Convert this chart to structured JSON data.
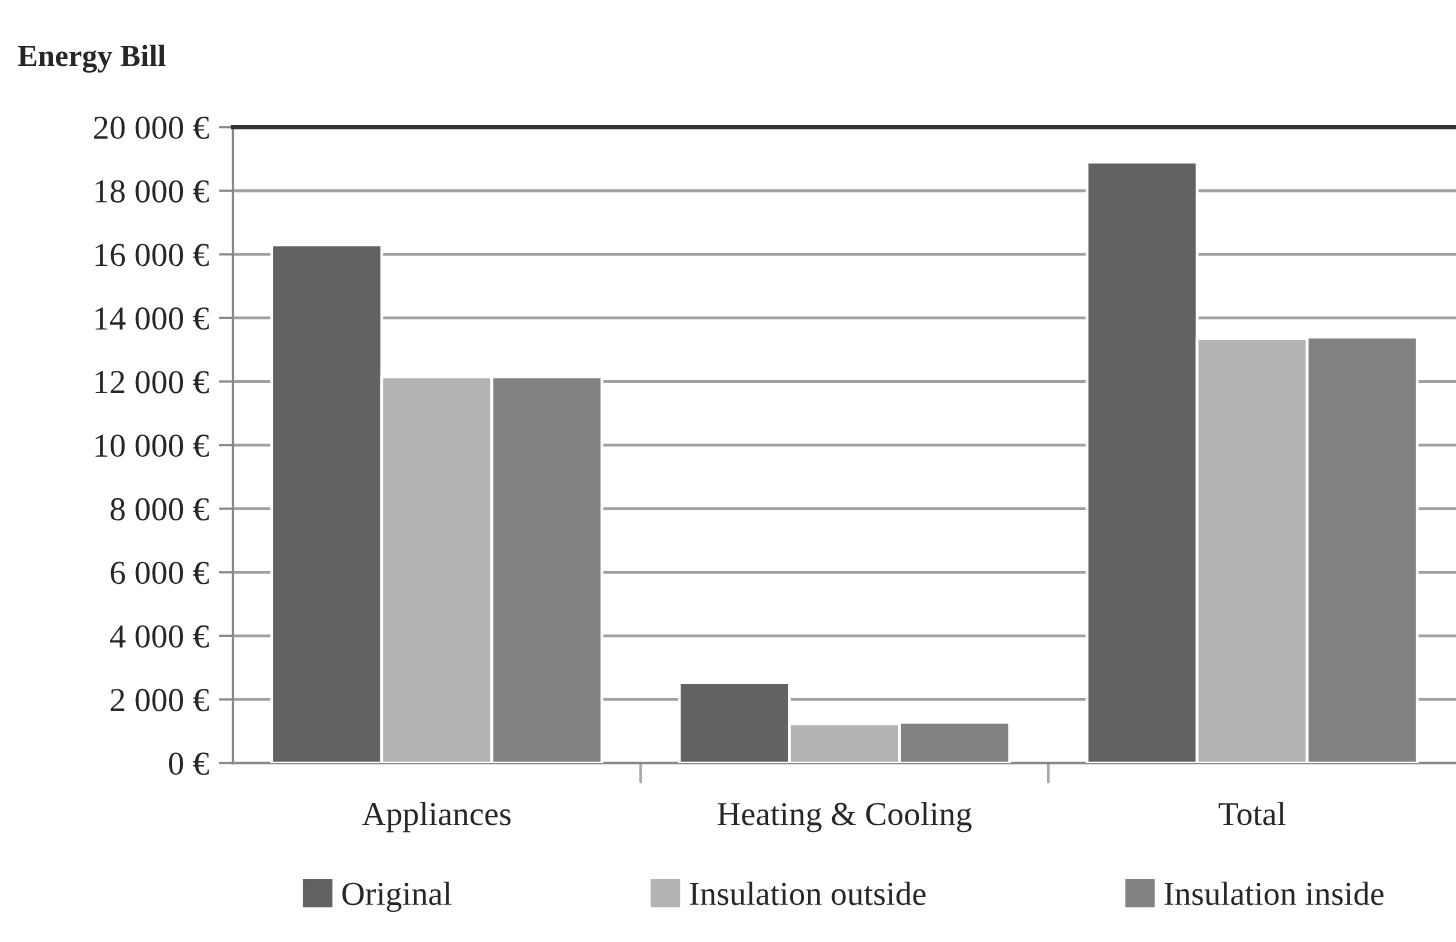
{
  "chart_data": {
    "type": "bar",
    "title": "Energy Bill",
    "categories": [
      "Appliances",
      "Heating & Cooling",
      "Total"
    ],
    "series": [
      {
        "name": "Original",
        "color": "#626262",
        "values": [
          16300,
          2530,
          18900
        ]
      },
      {
        "name": "Insulation outside",
        "color": "#b3b3b3",
        "values": [
          12150,
          1230,
          13350
        ]
      },
      {
        "name": "Insulation inside",
        "color": "#828282",
        "values": [
          12150,
          1280,
          13400
        ]
      }
    ],
    "ylim": [
      0,
      20000
    ],
    "yticks": [
      {
        "value": 0,
        "label": "0 €"
      },
      {
        "value": 2000,
        "label": "2 000 €"
      },
      {
        "value": 4000,
        "label": "4 000 €"
      },
      {
        "value": 6000,
        "label": "6 000 €"
      },
      {
        "value": 8000,
        "label": "8 000 €"
      },
      {
        "value": 10000,
        "label": "10 000 €"
      },
      {
        "value": 12000,
        "label": "12 000 €"
      },
      {
        "value": 14000,
        "label": "14 000 €"
      },
      {
        "value": 16000,
        "label": "16 000 €"
      },
      {
        "value": 18000,
        "label": "18 000 €"
      },
      {
        "value": 20000,
        "label": "20 000 €"
      }
    ],
    "grid": "y",
    "legend": "bottom"
  }
}
